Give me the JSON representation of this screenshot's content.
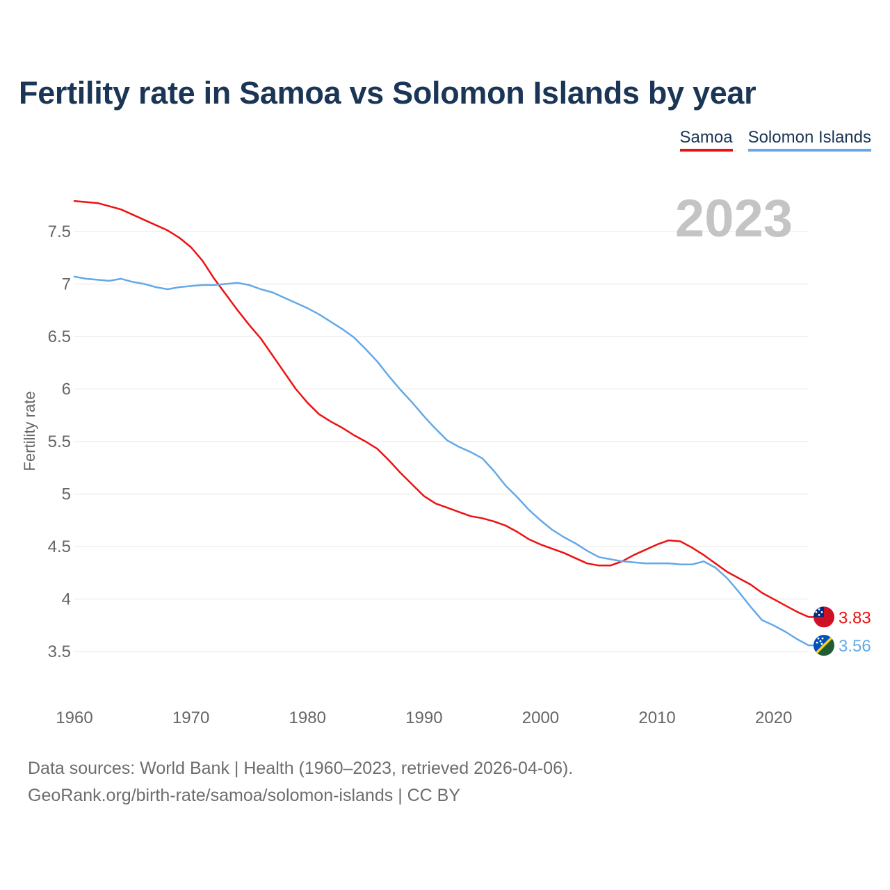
{
  "chart_data": {
    "type": "line",
    "title": "Fertility rate in Samoa vs Solomon Islands by year",
    "ylabel": "Fertility rate",
    "xlabel": "",
    "year_label": "2023",
    "xlim": [
      1960,
      2023
    ],
    "ylim": [
      3.25,
      7.85
    ],
    "x_ticks": [
      1960,
      1970,
      1980,
      1990,
      2000,
      2010,
      2020
    ],
    "y_ticks": [
      {
        "value": 3.5,
        "label": "3.5"
      },
      {
        "value": 4,
        "label": "4"
      },
      {
        "value": 4.5,
        "label": "4.5"
      },
      {
        "value": 5,
        "label": "5"
      },
      {
        "value": 5.5,
        "label": "5.5"
      },
      {
        "value": 6,
        "label": "6"
      },
      {
        "value": 6.5,
        "label": "6.5"
      },
      {
        "value": 7,
        "label": "7"
      },
      {
        "value": 7.5,
        "label": "7.5"
      }
    ],
    "grid": true,
    "legend_position": "top-right",
    "x": [
      1960,
      1961,
      1962,
      1963,
      1964,
      1965,
      1966,
      1967,
      1968,
      1969,
      1970,
      1971,
      1972,
      1973,
      1974,
      1975,
      1976,
      1977,
      1978,
      1979,
      1980,
      1981,
      1982,
      1983,
      1984,
      1985,
      1986,
      1987,
      1988,
      1989,
      1990,
      1991,
      1992,
      1993,
      1994,
      1995,
      1996,
      1997,
      1998,
      1999,
      2000,
      2001,
      2002,
      2003,
      2004,
      2005,
      2006,
      2007,
      2008,
      2009,
      2010,
      2011,
      2012,
      2013,
      2014,
      2015,
      2016,
      2017,
      2018,
      2019,
      2020,
      2021,
      2022,
      2023
    ],
    "series": [
      {
        "name": "Samoa",
        "color": "#ee1111",
        "end_label": "3.83",
        "values": [
          7.79,
          7.78,
          7.77,
          7.74,
          7.71,
          7.66,
          7.61,
          7.56,
          7.51,
          7.44,
          7.35,
          7.22,
          7.05,
          6.9,
          6.75,
          6.61,
          6.48,
          6.32,
          6.16,
          6.0,
          5.87,
          5.76,
          5.69,
          5.63,
          5.56,
          5.5,
          5.43,
          5.32,
          5.2,
          5.09,
          4.98,
          4.91,
          4.87,
          4.83,
          4.79,
          4.77,
          4.74,
          4.7,
          4.64,
          4.57,
          4.52,
          4.48,
          4.44,
          4.39,
          4.34,
          4.32,
          4.32,
          4.36,
          4.42,
          4.47,
          4.52,
          4.56,
          4.55,
          4.49,
          4.42,
          4.34,
          4.26,
          4.2,
          4.14,
          4.06,
          4.0,
          3.94,
          3.88,
          3.83
        ]
      },
      {
        "name": "Solomon Islands",
        "color": "#63a9e8",
        "end_label": "3.56",
        "values": [
          7.07,
          7.05,
          7.04,
          7.03,
          7.05,
          7.02,
          7.0,
          6.97,
          6.95,
          6.97,
          6.98,
          6.99,
          6.99,
          7.0,
          7.01,
          6.99,
          6.95,
          6.92,
          6.87,
          6.82,
          6.77,
          6.71,
          6.64,
          6.57,
          6.49,
          6.38,
          6.26,
          6.12,
          5.99,
          5.87,
          5.74,
          5.62,
          5.51,
          5.45,
          5.4,
          5.34,
          5.22,
          5.08,
          4.97,
          4.85,
          4.75,
          4.66,
          4.59,
          4.53,
          4.46,
          4.4,
          4.38,
          4.36,
          4.35,
          4.34,
          4.34,
          4.34,
          4.33,
          4.33,
          4.36,
          4.3,
          4.2,
          4.07,
          3.93,
          3.8,
          3.75,
          3.69,
          3.62,
          3.56
        ]
      }
    ]
  },
  "footer": {
    "sources": "Data sources: World Bank | Health (1960–2023, retrieved 2026-04-06).",
    "attribution": "GeoRank.org/birth-rate/samoa/solomon-islands | CC BY"
  }
}
